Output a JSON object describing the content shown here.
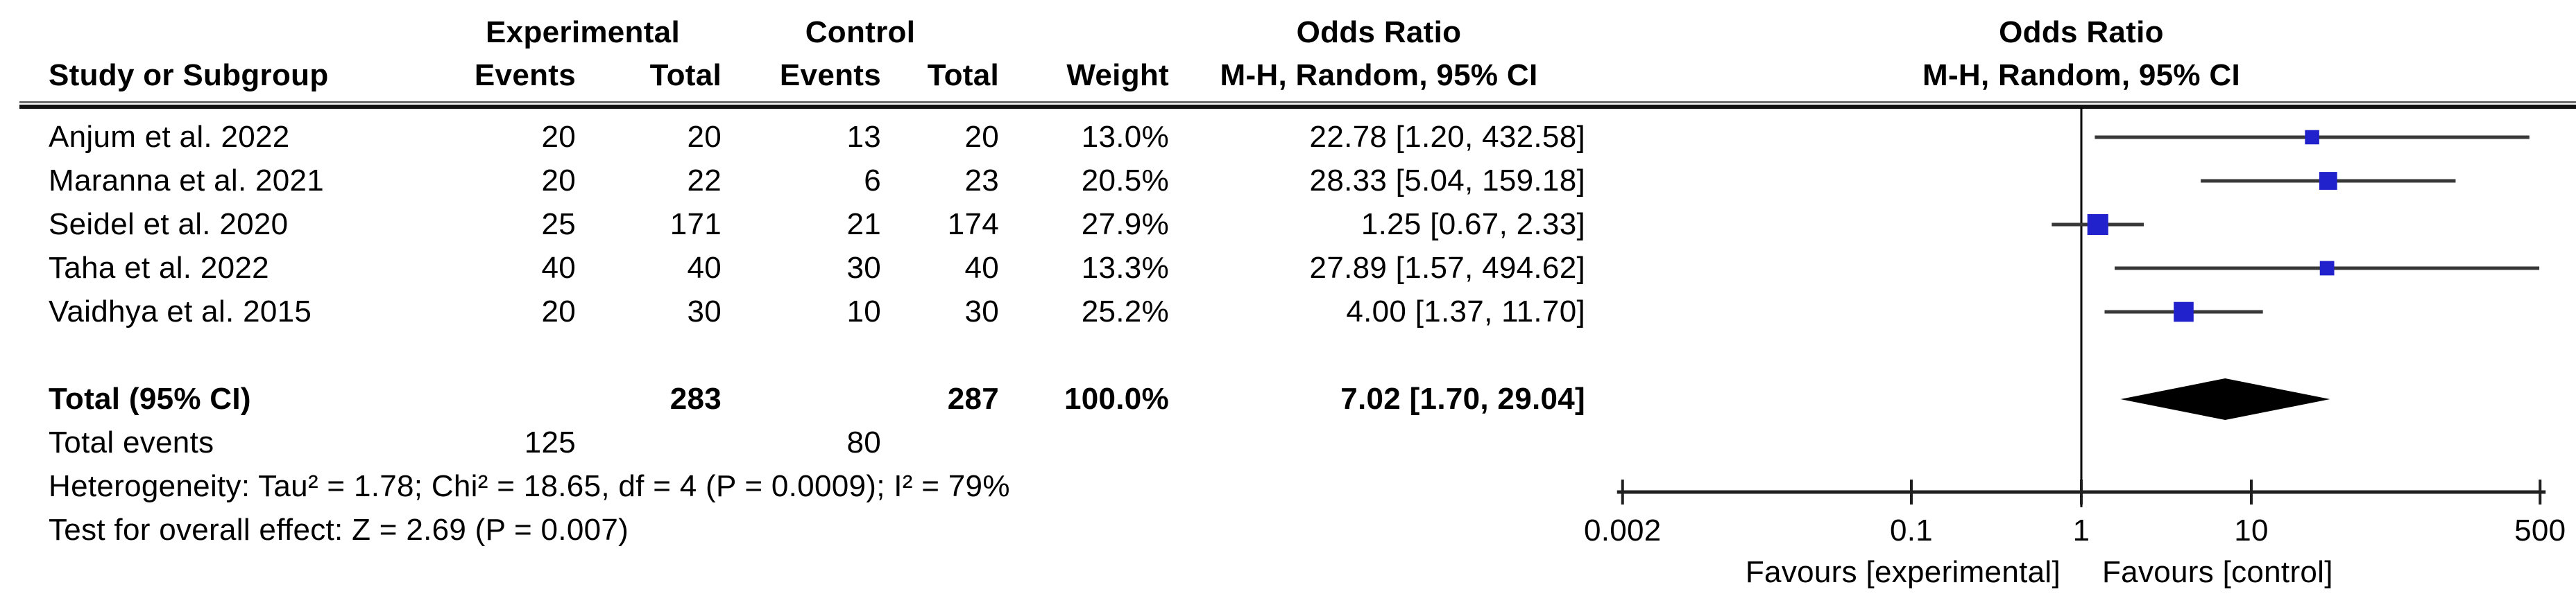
{
  "header": {
    "group1": {
      "experimental": "Experimental",
      "control": "Control",
      "odds_ratio_left": "Odds Ratio",
      "odds_ratio_right": "Odds Ratio"
    },
    "group2": {
      "study": "Study or Subgroup",
      "events_exp": "Events",
      "total_exp": "Total",
      "events_ctrl": "Events",
      "total_ctrl": "Total",
      "weight": "Weight",
      "mh_left": "M-H, Random, 95% CI",
      "mh_right": "M-H, Random, 95% CI"
    }
  },
  "table": {
    "rows": [
      {
        "study": "Anjum et al. 2022",
        "e_events": "20",
        "e_total": "20",
        "c_events": "13",
        "c_total": "20",
        "weight": "13.0%",
        "or_ci": "22.78 [1.20, 432.58]"
      },
      {
        "study": "Maranna et al. 2021",
        "e_events": "20",
        "e_total": "22",
        "c_events": "6",
        "c_total": "23",
        "weight": "20.5%",
        "or_ci": "28.33 [5.04, 159.18]"
      },
      {
        "study": "Seidel et al. 2020",
        "e_events": "25",
        "e_total": "171",
        "c_events": "21",
        "c_total": "174",
        "weight": "27.9%",
        "or_ci": "1.25 [0.67, 2.33]"
      },
      {
        "study": "Taha et al. 2022",
        "e_events": "40",
        "e_total": "40",
        "c_events": "30",
        "c_total": "40",
        "weight": "13.3%",
        "or_ci": "27.89 [1.57, 494.62]"
      },
      {
        "study": "Vaidhya et al. 2015",
        "e_events": "20",
        "e_total": "30",
        "c_events": "10",
        "c_total": "30",
        "weight": "25.2%",
        "or_ci": "4.00 [1.37, 11.70]"
      }
    ],
    "total_row": {
      "label": "Total (95% CI)",
      "e_total": "283",
      "c_total": "287",
      "weight": "100.0%",
      "or_ci": "7.02 [1.70, 29.04]"
    },
    "total_events": {
      "label": "Total events",
      "e_events": "125",
      "c_events": "80"
    },
    "heterogeneity": "Heterogeneity: Tau² = 1.78; Chi² = 18.65, df = 4 (P = 0.0009); I² = 79%",
    "overall_effect": "Test for overall effect: Z = 2.69 (P = 0.007)"
  },
  "chart_data": {
    "type": "forest",
    "effect_measure": "Odds Ratio, M-H, Random, 95% CI",
    "x_scale": "log10",
    "axis": {
      "min": 0.002,
      "max": 500,
      "null_line": 1,
      "ticks": [
        0.002,
        0.1,
        1,
        10,
        500
      ],
      "tick_labels": [
        "0.002",
        "0.1",
        "1",
        "10",
        "500"
      ]
    },
    "favours_left": "Favours [experimental]",
    "favours_right": "Favours [control]",
    "studies": [
      {
        "name": "Anjum et al. 2022",
        "or": 22.78,
        "ci_low": 1.2,
        "ci_high": 432.58,
        "weight_pct": 13.0
      },
      {
        "name": "Maranna et al. 2021",
        "or": 28.33,
        "ci_low": 5.04,
        "ci_high": 159.18,
        "weight_pct": 20.5
      },
      {
        "name": "Seidel et al. 2020",
        "or": 1.25,
        "ci_low": 0.67,
        "ci_high": 2.33,
        "weight_pct": 27.9
      },
      {
        "name": "Taha et al. 2022",
        "or": 27.89,
        "ci_low": 1.57,
        "ci_high": 494.62,
        "weight_pct": 13.3
      },
      {
        "name": "Vaidhya et al. 2015",
        "or": 4.0,
        "ci_low": 1.37,
        "ci_high": 11.7,
        "weight_pct": 25.2
      }
    ],
    "total": {
      "name": "Total (95% CI)",
      "or": 7.02,
      "ci_low": 1.7,
      "ci_high": 29.04,
      "weight_pct": 100.0
    },
    "colors": {
      "marker": "#2222cc",
      "ci_line": "#383838",
      "diamond": "#000000",
      "axis": "#1f1f1f",
      "text": "#000000"
    }
  }
}
